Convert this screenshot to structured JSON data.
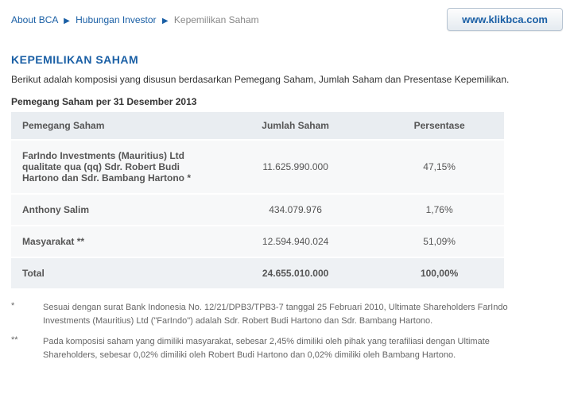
{
  "breadcrumb": {
    "item1": "About BCA",
    "item2": "Hubungan Investor",
    "item3": "Kepemilikan Saham"
  },
  "klik_button": "www.klikbca.com",
  "page_title": "KEPEMILIKAN SAHAM",
  "intro": "Berikut adalah komposisi yang disusun berdasarkan Pemegang Saham, Jumlah Saham dan Presentase Kepemilikan.",
  "subhead": "Pemegang Saham per 31 Desember 2013",
  "table": {
    "columns": [
      "Pemegang Saham",
      "Jumlah Saham",
      "Persentase"
    ],
    "rows": [
      {
        "name": "FarIndo Investments (Mauritius) Ltd qualitate qua (qq)\nSdr. Robert Budi Hartono dan Sdr. Bambang Hartono *",
        "shares": "11.625.990.000",
        "pct": "47,15%"
      },
      {
        "name": "Anthony Salim",
        "shares": "434.079.976",
        "pct": "1,76%"
      },
      {
        "name": "Masyarakat **",
        "shares": "12.594.940.024",
        "pct": "51,09%"
      }
    ],
    "total": {
      "name": "Total",
      "shares": "24.655.010.000",
      "pct": "100,00%"
    }
  },
  "footnotes": [
    {
      "mark": "*",
      "text": "Sesuai dengan surat Bank Indonesia No. 12/21/DPB3/TPB3-7 tanggal 25 Februari 2010, Ultimate Shareholders FarIndo Investments (Mauritius) Ltd (\"FarIndo\") adalah Sdr. Robert Budi Hartono dan Sdr. Bambang Hartono."
    },
    {
      "mark": "**",
      "text": "Pada komposisi saham yang dimiliki masyarakat, sebesar 2,45% dimiliki oleh pihak yang terafiliasi dengan Ultimate Shareholders, sebesar 0,02% dimiliki oleh Robert Budi Hartono dan 0,02% dimiliki oleh Bambang Hartono."
    }
  ]
}
